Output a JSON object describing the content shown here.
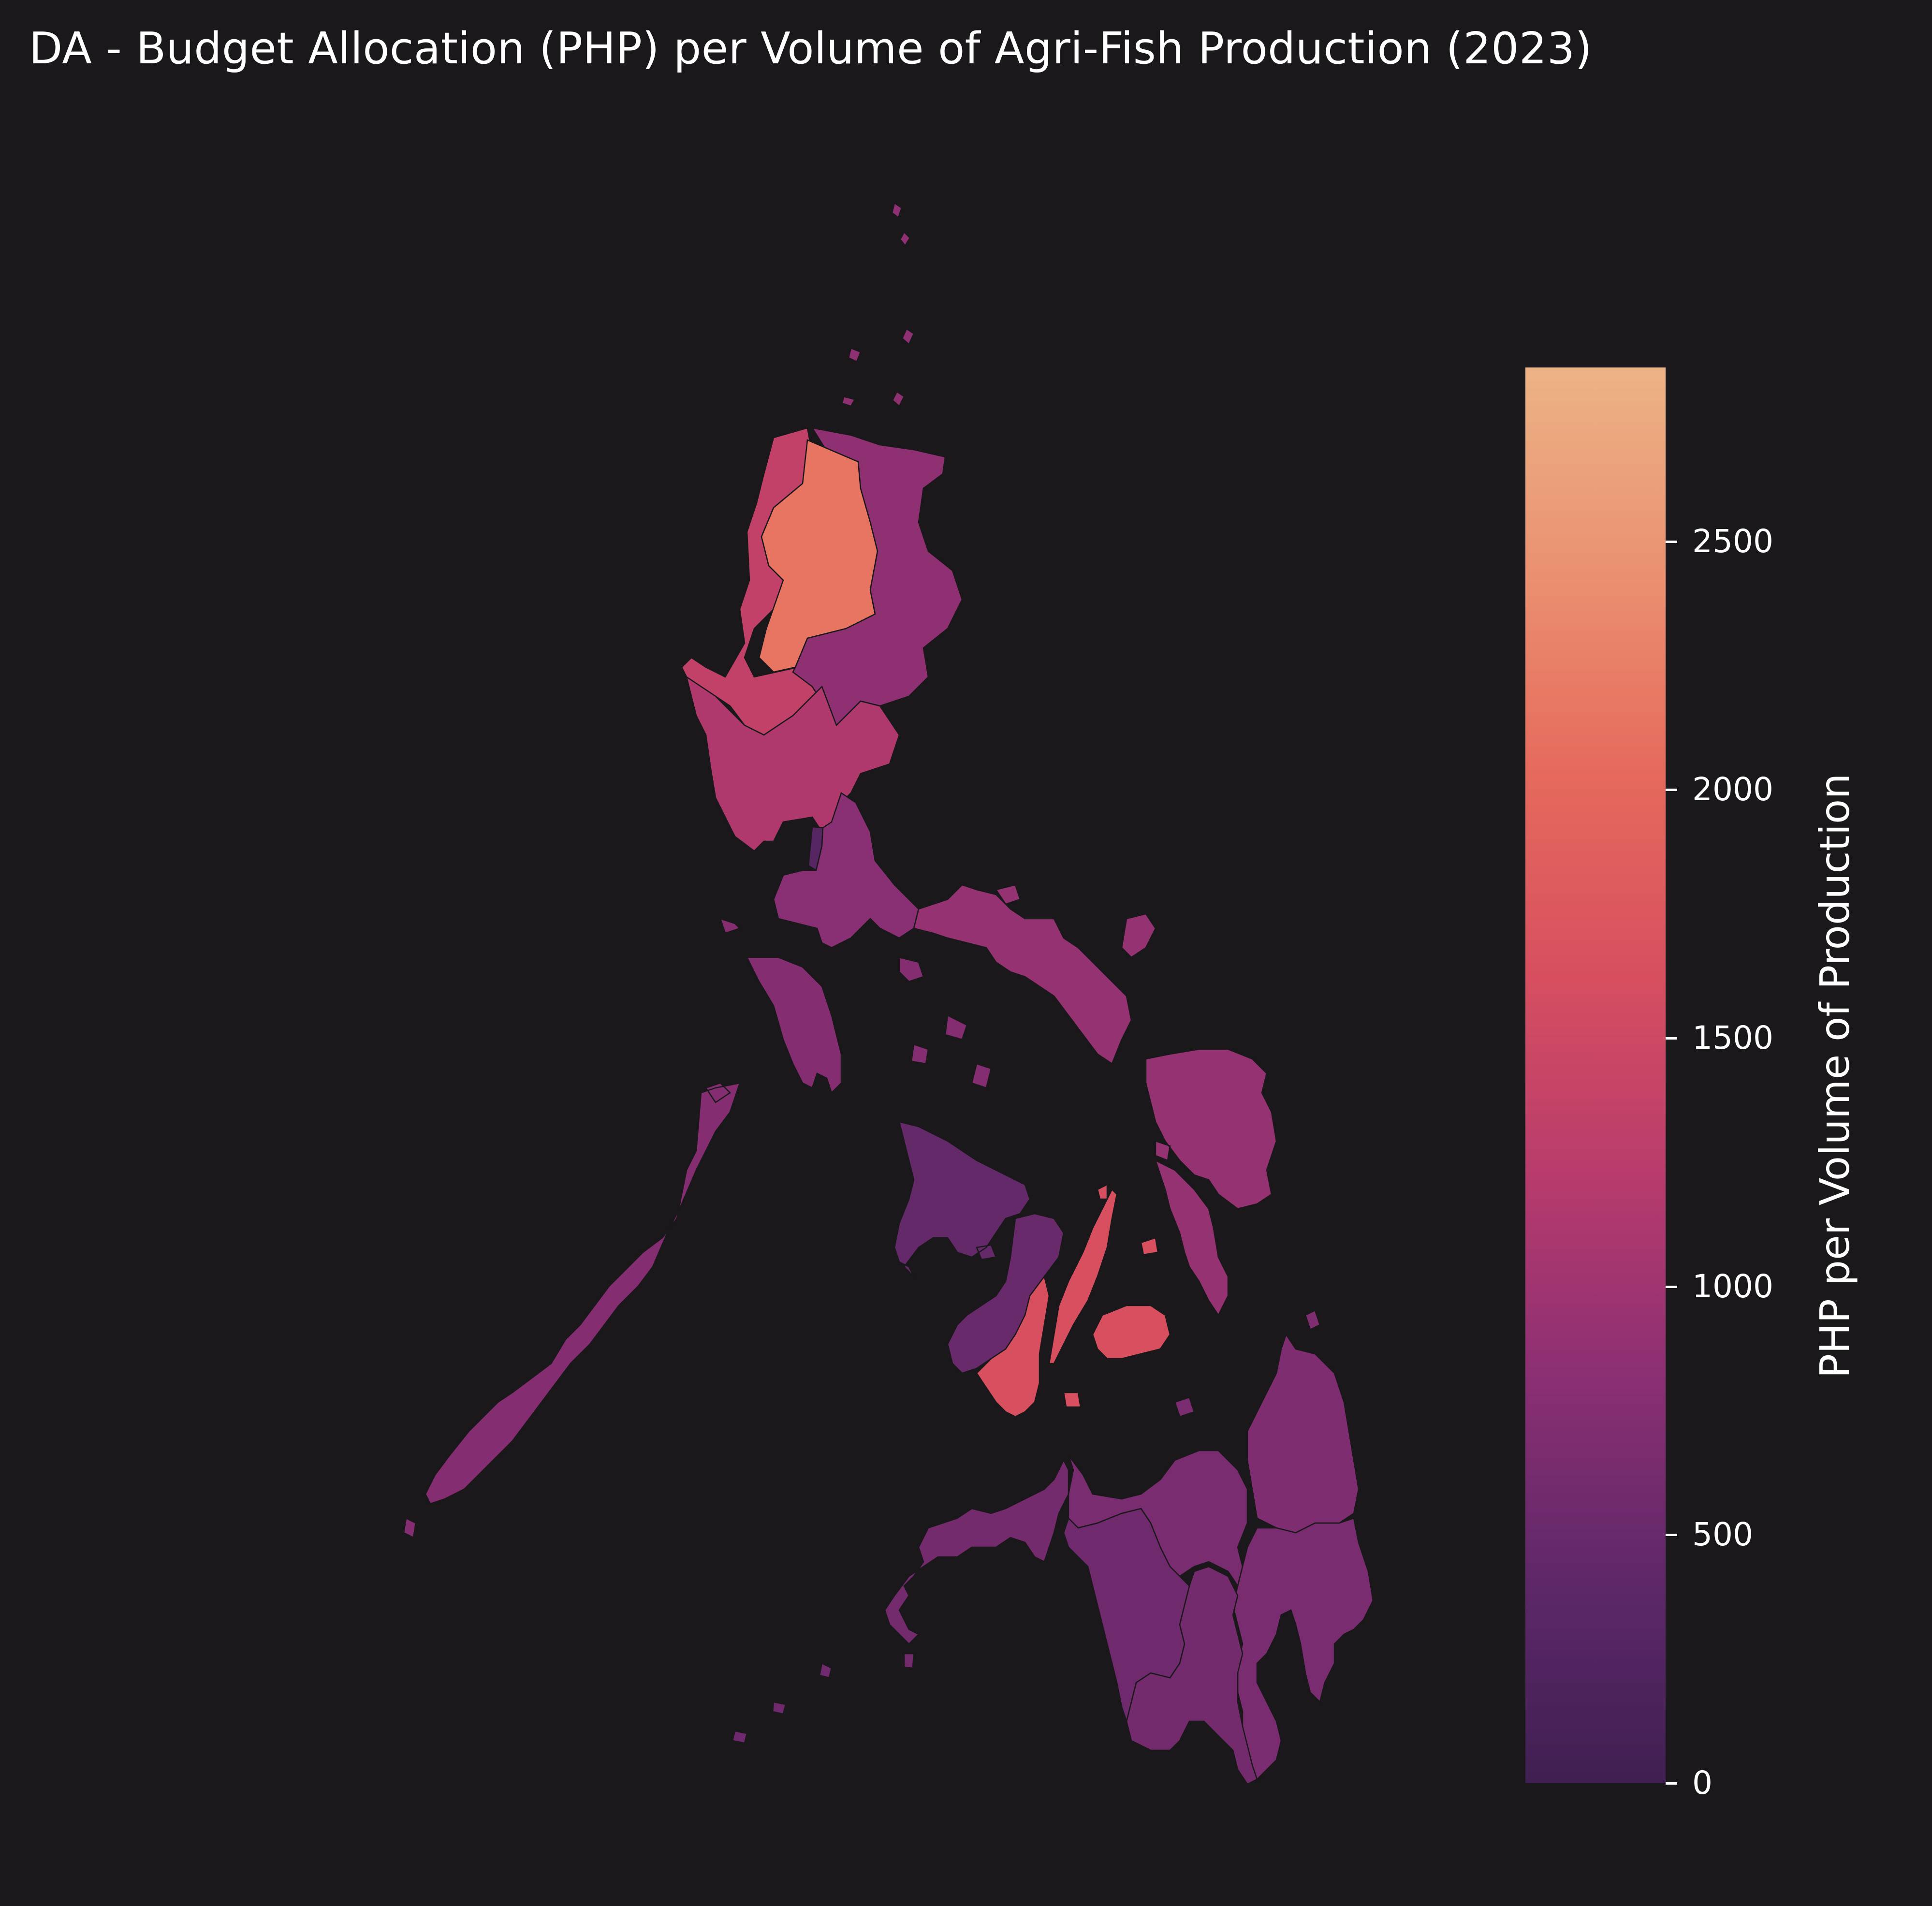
{
  "title": "DA - Budget Allocation (PHP) per Volume of Agri-Fish Production (2023)",
  "background_color": "#1a181b",
  "colorbar": {
    "label": "PHP per Volume of Production",
    "min": 0,
    "max": 2850,
    "ticks": [
      0,
      500,
      1000,
      1500,
      2000,
      2500
    ],
    "tick_labels": [
      "0",
      "500",
      "1000",
      "1500",
      "2000",
      "2500"
    ],
    "colormap": "flare",
    "color_stops": [
      "#3f1f52",
      "#5e2868",
      "#8b2f73",
      "#b73b6c",
      "#d74f5f",
      "#e66a5c",
      "#ea9171",
      "#ecb386"
    ]
  },
  "regions": [
    {
      "id": "ilocos",
      "value": 1350
    },
    {
      "id": "car",
      "value": 2150
    },
    {
      "id": "cagayan-valley",
      "value": 850
    },
    {
      "id": "central-luzon",
      "value": 1150
    },
    {
      "id": "ncr",
      "value": 300
    },
    {
      "id": "calabarzon",
      "value": 800
    },
    {
      "id": "mimaropa",
      "value": 750
    },
    {
      "id": "bicol",
      "value": 900
    },
    {
      "id": "western-visayas",
      "value": 450
    },
    {
      "id": "negros-island",
      "value": 500
    },
    {
      "id": "central-visayas",
      "value": 1650
    },
    {
      "id": "eastern-visayas",
      "value": 900
    },
    {
      "id": "zamboanga-peninsula",
      "value": 600
    },
    {
      "id": "northern-mindanao",
      "value": 650
    },
    {
      "id": "caraga",
      "value": 700
    },
    {
      "id": "davao",
      "value": 650
    },
    {
      "id": "soccsksargen",
      "value": 600
    },
    {
      "id": "barmm",
      "value": 550
    }
  ]
}
